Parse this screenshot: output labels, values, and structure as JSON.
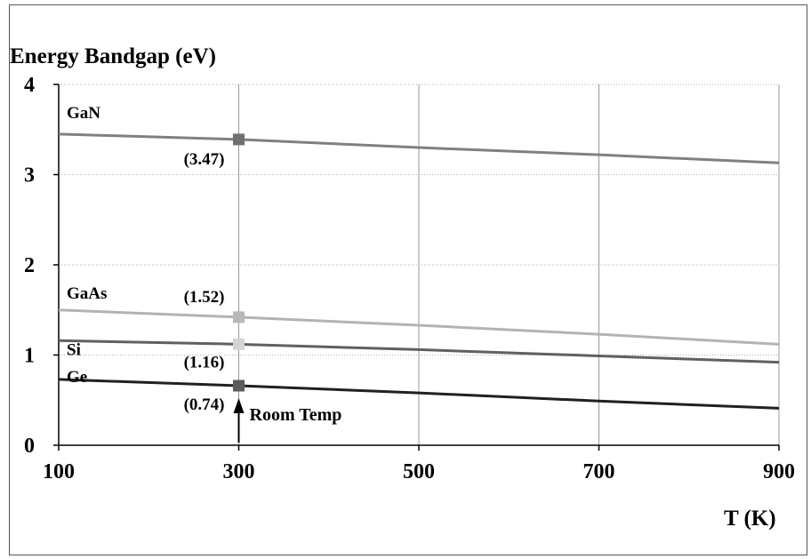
{
  "chart_data": {
    "type": "line",
    "title": "Energy Bandgap (eV)",
    "xlabel": "T (K)",
    "ylabel": "",
    "xlim": [
      100,
      900
    ],
    "ylim": [
      0,
      4
    ],
    "x_ticks": [
      "100",
      "300",
      "500",
      "700",
      "900"
    ],
    "y_ticks": [
      "0",
      "1",
      "2",
      "3",
      "4"
    ],
    "grid": "vertical major lines, horizontal dotted lines",
    "series": [
      {
        "name": "GaN",
        "color": "#808080",
        "x": [
          100,
          300,
          500,
          700,
          900
        ],
        "values": [
          3.45,
          3.39,
          3.3,
          3.22,
          3.13
        ],
        "marker": {
          "x": 300,
          "y": 3.39,
          "color": "#707070"
        },
        "value_label": "(3.47)"
      },
      {
        "name": "GaAs",
        "color": "#b3b3b3",
        "x": [
          100,
          300,
          500,
          700,
          900
        ],
        "values": [
          1.5,
          1.42,
          1.33,
          1.23,
          1.12
        ],
        "marker": {
          "x": 300,
          "y": 1.42,
          "color": "#b8b8b8"
        },
        "value_label": "(1.52)"
      },
      {
        "name": "Si",
        "color": "#606060",
        "x": [
          100,
          300,
          500,
          700,
          900
        ],
        "values": [
          1.16,
          1.12,
          1.06,
          0.99,
          0.92
        ],
        "marker": {
          "x": 300,
          "y": 1.12,
          "color": "#d4d4d4"
        },
        "value_label": "(1.16)"
      },
      {
        "name": "Ge",
        "color": "#202020",
        "x": [
          100,
          300,
          500,
          700,
          900
        ],
        "values": [
          0.73,
          0.66,
          0.58,
          0.49,
          0.41
        ],
        "marker": {
          "x": 300,
          "y": 0.66,
          "color": "#5c5c5c"
        },
        "value_label": "(0.74)"
      }
    ],
    "annotation": {
      "text": "Room Temp",
      "x": 300
    }
  }
}
